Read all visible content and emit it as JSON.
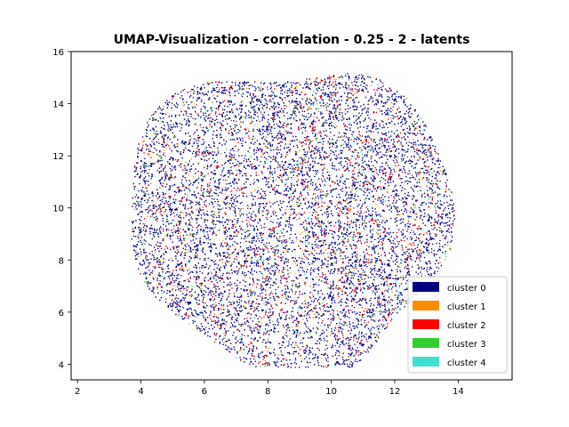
{
  "chart_data": {
    "type": "scatter",
    "title": "UMAP-Visualization - correlation - 0.25 - 2 - latents",
    "xlabel": "",
    "ylabel": "",
    "xlim": [
      1.8,
      15.7
    ],
    "ylim": [
      3.4,
      16.0
    ],
    "xticks": [
      2,
      4,
      6,
      8,
      10,
      12,
      14
    ],
    "yticks": [
      4,
      6,
      8,
      10,
      12,
      14,
      16
    ],
    "grid": false,
    "legend_position": "lower right",
    "cloud": {
      "center": [
        8.9,
        9.6
      ],
      "x_extent": [
        2.5,
        15.2
      ],
      "y_extent": [
        3.9,
        15.4
      ],
      "approx_points": 9000
    },
    "series": [
      {
        "name": "cluster 0",
        "color": "#00007f",
        "share": 0.8
      },
      {
        "name": "cluster 1",
        "color": "#ff8c00",
        "share": 0.05
      },
      {
        "name": "cluster 2",
        "color": "#ff0000",
        "share": 0.11
      },
      {
        "name": "cluster 3",
        "color": "#32cd32",
        "share": 0.025
      },
      {
        "name": "cluster 4",
        "color": "#40e0d0",
        "share": 0.015
      }
    ]
  }
}
